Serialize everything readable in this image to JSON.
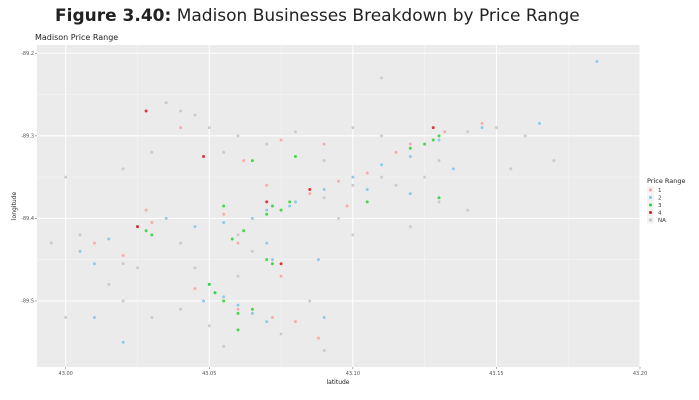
{
  "figure": {
    "number": "Figure 3.40:",
    "caption": "Madison Businesses Breakdown by Price Range"
  },
  "chart_data": {
    "type": "scatter",
    "title": "Madison Price Range",
    "xlabel": "latitude",
    "ylabel": "longitude",
    "xlim": [
      42.99,
      43.2
    ],
    "ylim": [
      -89.58,
      -89.19
    ],
    "x_ticks": [
      {
        "value": 43.0,
        "label": "43.00"
      },
      {
        "value": 43.05,
        "label": "43.05"
      },
      {
        "value": 43.1,
        "label": "43.10"
      },
      {
        "value": 43.15,
        "label": "43.15"
      },
      {
        "value": 43.2,
        "label": "43.20"
      }
    ],
    "y_ticks": [
      {
        "value": -89.2,
        "label": "-89.2"
      },
      {
        "value": -89.3,
        "label": "-89.3"
      },
      {
        "value": -89.4,
        "label": "-89.4"
      },
      {
        "value": -89.5,
        "label": "-89.5"
      }
    ],
    "grid": true,
    "legend": {
      "title": "Price Range",
      "placement": "right"
    },
    "series": [
      {
        "name": "1",
        "color": "#F8A3A0",
        "points": [
          [
            43.062,
            -89.33
          ],
          [
            43.075,
            -89.305
          ],
          [
            43.085,
            -89.37
          ],
          [
            43.09,
            -89.31
          ],
          [
            43.105,
            -89.345
          ],
          [
            43.12,
            -89.31
          ],
          [
            43.098,
            -89.385
          ],
          [
            43.07,
            -89.36
          ],
          [
            43.04,
            -89.29
          ],
          [
            43.055,
            -89.395
          ],
          [
            43.03,
            -89.405
          ],
          [
            43.06,
            -89.43
          ],
          [
            43.075,
            -89.47
          ],
          [
            43.06,
            -89.51
          ],
          [
            43.045,
            -89.485
          ],
          [
            43.072,
            -89.52
          ],
          [
            43.08,
            -89.525
          ],
          [
            43.028,
            -89.39
          ],
          [
            43.132,
            -89.295
          ],
          [
            43.145,
            -89.285
          ],
          [
            43.115,
            -89.32
          ],
          [
            43.095,
            -89.355
          ],
          [
            43.01,
            -89.43
          ],
          [
            43.02,
            -89.445
          ],
          [
            43.088,
            -89.545
          ]
        ]
      },
      {
        "name": "2",
        "color": "#7FC6E8",
        "points": [
          [
            43.12,
            -89.325
          ],
          [
            43.13,
            -89.305
          ],
          [
            43.145,
            -89.29
          ],
          [
            43.11,
            -89.335
          ],
          [
            43.1,
            -89.35
          ],
          [
            43.09,
            -89.365
          ],
          [
            43.08,
            -89.38
          ],
          [
            43.07,
            -89.39
          ],
          [
            43.065,
            -89.4
          ],
          [
            43.055,
            -89.405
          ],
          [
            43.045,
            -89.41
          ],
          [
            43.035,
            -89.4
          ],
          [
            43.025,
            -89.41
          ],
          [
            43.015,
            -89.425
          ],
          [
            43.005,
            -89.44
          ],
          [
            43.07,
            -89.43
          ],
          [
            43.072,
            -89.45
          ],
          [
            43.05,
            -89.48
          ],
          [
            43.055,
            -89.495
          ],
          [
            43.06,
            -89.505
          ],
          [
            43.065,
            -89.515
          ],
          [
            43.07,
            -89.525
          ],
          [
            43.09,
            -89.52
          ],
          [
            43.052,
            -89.49
          ],
          [
            43.048,
            -89.5
          ],
          [
            43.105,
            -89.365
          ],
          [
            43.12,
            -89.37
          ],
          [
            43.135,
            -89.34
          ],
          [
            43.165,
            -89.285
          ],
          [
            43.185,
            -89.21
          ],
          [
            43.02,
            -89.55
          ],
          [
            43.01,
            -89.52
          ],
          [
            43.088,
            -89.45
          ],
          [
            43.078,
            -89.385
          ],
          [
            43.01,
            -89.455
          ]
        ]
      },
      {
        "name": "3",
        "color": "#2BD42B",
        "points": [
          [
            43.125,
            -89.31
          ],
          [
            43.128,
            -89.305
          ],
          [
            43.13,
            -89.3
          ],
          [
            43.12,
            -89.315
          ],
          [
            43.072,
            -89.385
          ],
          [
            43.075,
            -89.39
          ],
          [
            43.07,
            -89.395
          ],
          [
            43.078,
            -89.38
          ],
          [
            43.062,
            -89.415
          ],
          [
            43.058,
            -89.425
          ],
          [
            43.055,
            -89.5
          ],
          [
            43.06,
            -89.515
          ],
          [
            43.052,
            -89.49
          ],
          [
            43.065,
            -89.51
          ],
          [
            43.05,
            -89.48
          ],
          [
            43.028,
            -89.415
          ],
          [
            43.03,
            -89.42
          ],
          [
            43.07,
            -89.45
          ],
          [
            43.072,
            -89.455
          ],
          [
            43.13,
            -89.375
          ],
          [
            43.105,
            -89.38
          ],
          [
            43.06,
            -89.535
          ],
          [
            43.065,
            -89.33
          ],
          [
            43.08,
            -89.325
          ],
          [
            43.055,
            -89.385
          ]
        ]
      },
      {
        "name": "4",
        "color": "#D7191C",
        "points": [
          [
            43.028,
            -89.27
          ],
          [
            43.048,
            -89.325
          ],
          [
            43.085,
            -89.365
          ],
          [
            43.128,
            -89.29
          ],
          [
            43.025,
            -89.41
          ],
          [
            43.075,
            -89.455
          ],
          [
            43.07,
            -89.38
          ]
        ]
      },
      {
        "name": "NA",
        "color": "#C9C4C4",
        "points": [
          [
            43.02,
            -89.34
          ],
          [
            43.03,
            -89.32
          ],
          [
            43.05,
            -89.29
          ],
          [
            43.06,
            -89.3
          ],
          [
            43.08,
            -89.295
          ],
          [
            43.1,
            -89.29
          ],
          [
            43.11,
            -89.3
          ],
          [
            43.14,
            -89.295
          ],
          [
            43.15,
            -89.29
          ],
          [
            43.16,
            -89.3
          ],
          [
            43.17,
            -89.33
          ],
          [
            43.11,
            -89.23
          ],
          [
            43.04,
            -89.27
          ],
          [
            43.035,
            -89.26
          ],
          [
            43.045,
            -89.275
          ],
          [
            43.09,
            -89.375
          ],
          [
            43.1,
            -89.36
          ],
          [
            43.11,
            -89.35
          ],
          [
            43.06,
            -89.42
          ],
          [
            43.04,
            -89.43
          ],
          [
            43.02,
            -89.455
          ],
          [
            43.015,
            -89.48
          ],
          [
            43.02,
            -89.5
          ],
          [
            43.03,
            -89.52
          ],
          [
            43.04,
            -89.51
          ],
          [
            43.05,
            -89.53
          ],
          [
            43.075,
            -89.54
          ],
          [
            43.085,
            -89.5
          ],
          [
            43.1,
            -89.42
          ],
          [
            43.12,
            -89.41
          ],
          [
            43.13,
            -89.38
          ],
          [
            43.0,
            -89.35
          ],
          [
            43.005,
            -89.42
          ],
          [
            42.995,
            -89.43
          ],
          [
            43.0,
            -89.52
          ],
          [
            43.09,
            -89.56
          ],
          [
            43.055,
            -89.555
          ],
          [
            43.025,
            -89.46
          ],
          [
            43.065,
            -89.44
          ],
          [
            43.095,
            -89.4
          ],
          [
            43.115,
            -89.36
          ],
          [
            43.125,
            -89.35
          ],
          [
            43.06,
            -89.47
          ],
          [
            43.045,
            -89.46
          ],
          [
            43.09,
            -89.33
          ],
          [
            43.07,
            -89.31
          ],
          [
            43.055,
            -89.32
          ],
          [
            43.13,
            -89.33
          ],
          [
            43.155,
            -89.34
          ],
          [
            43.14,
            -89.39
          ]
        ]
      }
    ]
  }
}
